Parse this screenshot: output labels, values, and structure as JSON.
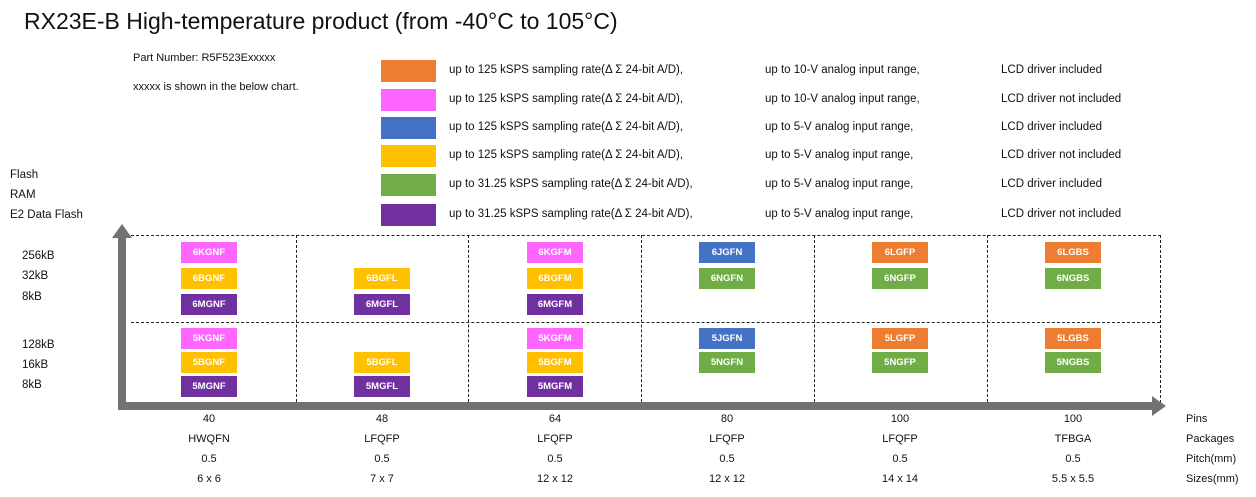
{
  "title": "RX23E-B High-temperature product (from -40°C to 105°C)",
  "part_number": "Part Number: R5F523Exxxxx",
  "part_note": "xxxxx is shown in the below chart.",
  "colors": {
    "orange": "#ED7D31",
    "pink": "#FF66FF",
    "blue": "#4472C4",
    "yellow": "#FFC000",
    "green": "#70AD47",
    "purple": "#7030A0",
    "axis": "#767171"
  },
  "legend": [
    {
      "color": "orange",
      "rate": "up to 125 kSPS sampling rate(Δ Σ 24-bit A/D),",
      "range": "up to 10-V analog input range,",
      "lcd": "LCD driver included"
    },
    {
      "color": "pink",
      "rate": "up to 125 kSPS sampling rate(Δ Σ 24-bit A/D),",
      "range": "up to 10-V analog input range,",
      "lcd": "LCD driver not included"
    },
    {
      "color": "blue",
      "rate": "up to 125 kSPS sampling rate(Δ Σ 24-bit A/D),",
      "range": "up to 5-V analog input range,",
      "lcd": "LCD driver included"
    },
    {
      "color": "yellow",
      "rate": "up to 125 kSPS sampling rate(Δ Σ 24-bit A/D),",
      "range": "up to 5-V analog input range,",
      "lcd": "LCD driver not included"
    },
    {
      "color": "green",
      "rate": "up to 31.25 kSPS sampling rate(Δ Σ 24-bit A/D),",
      "range": "up to 5-V analog input range,",
      "lcd": "LCD driver included"
    },
    {
      "color": "purple",
      "rate": "up to 31.25 kSPS sampling rate(Δ Σ 24-bit A/D),",
      "range": "up to 5-V analog input range,",
      "lcd": "LCD driver not included"
    }
  ],
  "y_axis": {
    "labels": [
      "Flash",
      "RAM",
      "E2 Data Flash"
    ],
    "rows": [
      [
        "256kB",
        "32kB",
        "8kB"
      ],
      [
        "128kB",
        "16kB",
        "8kB"
      ]
    ]
  },
  "x_axis": {
    "row_labels": [
      "Pins",
      "Packages",
      "Pitch(mm)",
      "Sizes(mm)"
    ],
    "columns": [
      {
        "pins": "40",
        "package": "HWQFN",
        "pitch": "0.5",
        "size": "6 x 6"
      },
      {
        "pins": "48",
        "package": "LFQFP",
        "pitch": "0.5",
        "size": "7 x 7"
      },
      {
        "pins": "64",
        "package": "LFQFP",
        "pitch": "0.5",
        "size": "12 x 12"
      },
      {
        "pins": "80",
        "package": "LFQFP",
        "pitch": "0.5",
        "size": "12 x 12"
      },
      {
        "pins": "100",
        "package": "LFQFP",
        "pitch": "0.5",
        "size": "14 x 14"
      },
      {
        "pins": "100",
        "package": "TFBGA",
        "pitch": "0.5",
        "size": "5.5 x 5.5"
      }
    ]
  },
  "cells": [
    [
      [
        {
          "t": "6KGNF",
          "c": "pink"
        },
        {
          "t": "6BGNF",
          "c": "yellow"
        },
        {
          "t": "6MGNF",
          "c": "purple"
        }
      ],
      [
        {
          "t": "5KGNF",
          "c": "pink"
        },
        {
          "t": "5BGNF",
          "c": "yellow"
        },
        {
          "t": "5MGNF",
          "c": "purple"
        }
      ]
    ],
    [
      [
        null,
        {
          "t": "6BGFL",
          "c": "yellow"
        },
        {
          "t": "6MGFL",
          "c": "purple"
        }
      ],
      [
        null,
        {
          "t": "5BGFL",
          "c": "yellow"
        },
        {
          "t": "5MGFL",
          "c": "purple"
        }
      ]
    ],
    [
      [
        {
          "t": "6KGFM",
          "c": "pink"
        },
        {
          "t": "6BGFM",
          "c": "yellow"
        },
        {
          "t": "6MGFM",
          "c": "purple"
        }
      ],
      [
        {
          "t": "5KGFM",
          "c": "pink"
        },
        {
          "t": "5BGFM",
          "c": "yellow"
        },
        {
          "t": "5MGFM",
          "c": "purple"
        }
      ]
    ],
    [
      [
        {
          "t": "6JGFN",
          "c": "blue"
        },
        {
          "t": "6NGFN",
          "c": "green"
        }
      ],
      [
        {
          "t": "5JGFN",
          "c": "blue"
        },
        {
          "t": "5NGFN",
          "c": "green"
        }
      ]
    ],
    [
      [
        {
          "t": "6LGFP",
          "c": "orange"
        },
        {
          "t": "6NGFP",
          "c": "green"
        }
      ],
      [
        {
          "t": "5LGFP",
          "c": "orange"
        },
        {
          "t": "5NGFP",
          "c": "green"
        }
      ]
    ],
    [
      [
        {
          "t": "6LGBS",
          "c": "orange"
        },
        {
          "t": "6NGBS",
          "c": "green"
        }
      ],
      [
        {
          "t": "5LGBS",
          "c": "orange"
        },
        {
          "t": "5NGBS",
          "c": "green"
        }
      ]
    ]
  ]
}
